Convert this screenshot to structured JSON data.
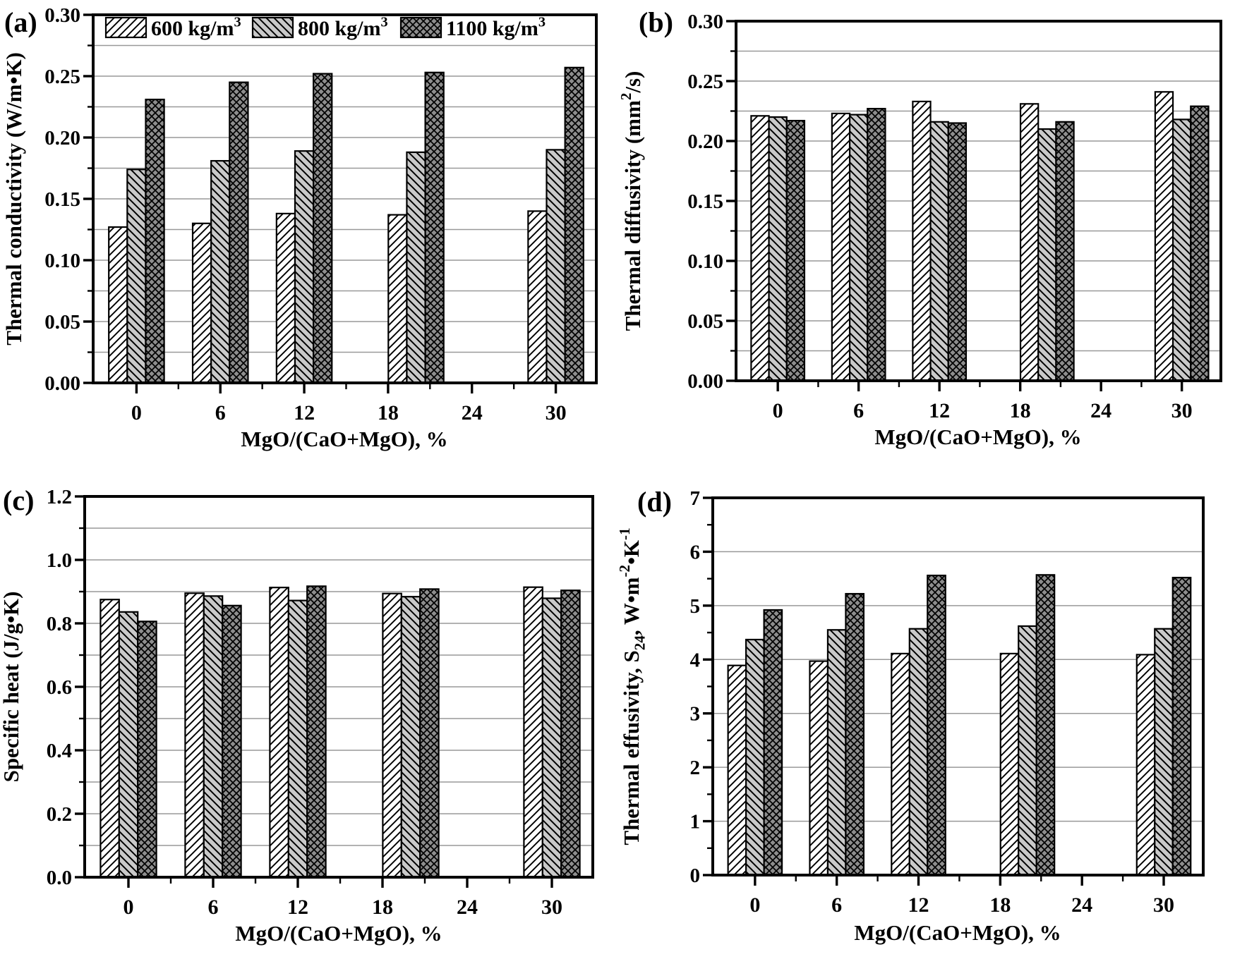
{
  "figure": {
    "colors": {
      "axis": "#000000",
      "gridline": "#999999",
      "hatch": "#000000",
      "bar_outline": "#000000",
      "fill_600": "#ffffff",
      "fill_800": "#c9c9c9",
      "fill_1100": "#8d8d8d"
    },
    "legend": {
      "items": [
        {
          "label": "600 kg/m",
          "sup": "3",
          "fill": "#ffffff",
          "pattern": "diagonal-up-hatch"
        },
        {
          "label": "800 kg/m",
          "sup": "3",
          "fill": "#c9c9c9",
          "pattern": "diagonal-down-hatch"
        },
        {
          "label": "1100 kg/m",
          "sup": "3",
          "fill": "#8d8d8d",
          "pattern": "crosshatch"
        }
      ]
    }
  },
  "chart_data": [
    {
      "id": "a",
      "panel_label": "(a)",
      "type": "bar",
      "ylabel": "Thermal conductivity (W/m•K)",
      "ylabel_segments": [
        {
          "t": "Thermal conductivity (W/m•K)"
        }
      ],
      "xlabel": "MgO/(CaO+MgO), %",
      "ylim": [
        0,
        0.3
      ],
      "ytick_step": 0.05,
      "yminor_step": 0.025,
      "grid_step": 0.025,
      "ytick_decimals": 2,
      "xlim": [
        -3.1,
        32.9
      ],
      "xticks": [
        0,
        6,
        12,
        18,
        24,
        30
      ],
      "xminor_ticks": [
        3,
        9,
        15,
        21,
        27
      ],
      "categories": [
        "0",
        "6",
        "12",
        "18",
        "30"
      ],
      "group_positions": [
        0,
        6,
        12,
        20,
        30
      ],
      "grid": true,
      "legend": true,
      "legend_position": "top-inside",
      "series": [
        {
          "name": "600 kg/m³",
          "values": [
            0.127,
            0.13,
            0.138,
            0.137,
            0.14
          ]
        },
        {
          "name": "800 kg/m³",
          "values": [
            0.174,
            0.181,
            0.189,
            0.188,
            0.19
          ]
        },
        {
          "name": "1100 kg/m³",
          "values": [
            0.231,
            0.245,
            0.252,
            0.253,
            0.257
          ]
        }
      ]
    },
    {
      "id": "b",
      "panel_label": "(b)",
      "type": "bar",
      "ylabel": "Thermal diffusivity (mm²/s)",
      "ylabel_segments": [
        {
          "t": "Thermal diffusivity (mm"
        },
        {
          "t": "2",
          "sup": true
        },
        {
          "t": "/s)"
        }
      ],
      "xlabel": "MgO/(CaO+MgO), %",
      "ylim": [
        0,
        0.3
      ],
      "ytick_step": 0.05,
      "yminor_step": 0.025,
      "grid_step": 0.025,
      "ytick_decimals": 2,
      "xlim": [
        -3.1,
        32.9
      ],
      "xticks": [
        0,
        6,
        12,
        18,
        24,
        30
      ],
      "xminor_ticks": [
        3,
        9,
        15,
        21,
        27
      ],
      "categories": [
        "0",
        "6",
        "12",
        "18",
        "30"
      ],
      "group_positions": [
        0,
        6,
        12,
        20,
        30
      ],
      "grid": true,
      "legend": false,
      "series": [
        {
          "name": "600 kg/m³",
          "values": [
            0.221,
            0.223,
            0.233,
            0.231,
            0.241
          ]
        },
        {
          "name": "800 kg/m³",
          "values": [
            0.22,
            0.222,
            0.216,
            0.21,
            0.218
          ]
        },
        {
          "name": "1100 kg/m³",
          "values": [
            0.217,
            0.227,
            0.215,
            0.216,
            0.229
          ]
        }
      ]
    },
    {
      "id": "c",
      "panel_label": "(c)",
      "type": "bar",
      "ylabel": "Specific heat (J/g•K)",
      "ylabel_segments": [
        {
          "t": "Specific heat (J/g•K)"
        }
      ],
      "xlabel": "MgO/(CaO+MgO), %",
      "ylim": [
        0,
        1.2
      ],
      "ytick_step": 0.2,
      "yminor_step": 0.1,
      "grid_step": 0.1,
      "ytick_decimals": 1,
      "xlim": [
        -3.1,
        32.9
      ],
      "xticks": [
        0,
        6,
        12,
        18,
        24,
        30
      ],
      "xminor_ticks": [
        3,
        9,
        15,
        21,
        27
      ],
      "categories": [
        "0",
        "6",
        "12",
        "18",
        "30"
      ],
      "group_positions": [
        0,
        6,
        12,
        20,
        30
      ],
      "grid": true,
      "legend": false,
      "series": [
        {
          "name": "600 kg/m³",
          "values": [
            0.875,
            0.895,
            0.913,
            0.894,
            0.914
          ]
        },
        {
          "name": "800 kg/m³",
          "values": [
            0.836,
            0.886,
            0.872,
            0.884,
            0.879
          ]
        },
        {
          "name": "1100 kg/m³",
          "values": [
            0.806,
            0.856,
            0.917,
            0.908,
            0.904
          ]
        }
      ]
    },
    {
      "id": "d",
      "panel_label": "(d)",
      "type": "bar",
      "ylabel": "Thermal effusivity, S₂₄, W•m⁻²•K⁻¹",
      "ylabel_segments": [
        {
          "t": "Thermal effusivity, S"
        },
        {
          "t": "24",
          "sub": true
        },
        {
          "t": ", W•m"
        },
        {
          "t": "-2",
          "sup": true
        },
        {
          "t": "•K"
        },
        {
          "t": "-1",
          "sup": true
        }
      ],
      "xlabel": "MgO/(CaO+MgO), %",
      "ylim": [
        0,
        7
      ],
      "ytick_step": 1,
      "yminor_step": 0.5,
      "grid_step": 1,
      "ytick_decimals": 0,
      "xlim": [
        -3.1,
        32.9
      ],
      "xticks": [
        0,
        6,
        12,
        18,
        24,
        30
      ],
      "xminor_ticks": [
        3,
        9,
        15,
        21,
        27
      ],
      "categories": [
        "0",
        "6",
        "12",
        "18",
        "30"
      ],
      "group_positions": [
        0,
        6,
        12,
        20,
        30
      ],
      "grid": true,
      "legend": false,
      "series": [
        {
          "name": "600 kg/m³",
          "values": [
            3.89,
            3.97,
            4.11,
            4.11,
            4.09
          ]
        },
        {
          "name": "800 kg/m³",
          "values": [
            4.37,
            4.55,
            4.57,
            4.62,
            4.57
          ]
        },
        {
          "name": "1100 kg/m³",
          "values": [
            4.92,
            5.22,
            5.56,
            5.57,
            5.52
          ]
        }
      ]
    }
  ]
}
